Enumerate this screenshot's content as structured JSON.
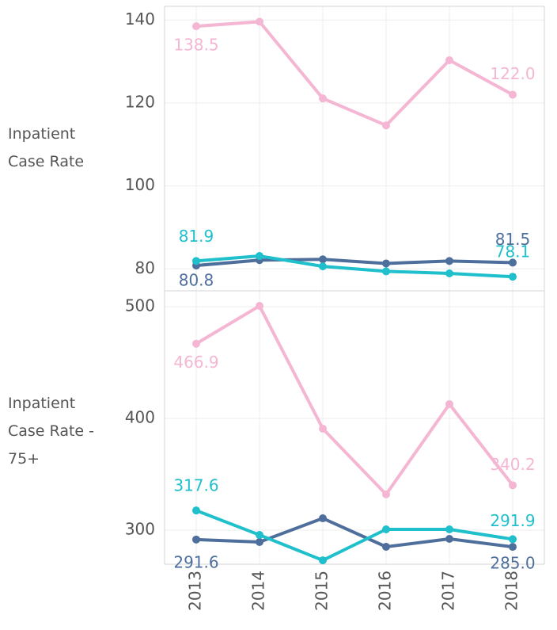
{
  "chart_data": {
    "type": "line",
    "categories": [
      "2013",
      "2014",
      "2015",
      "2016",
      "2017",
      "2018"
    ],
    "grid": true,
    "panels": [
      {
        "ylabel": "Inpatient Case Rate",
        "ylim": [
          74.7,
          143.3
        ],
        "yticks": [
          80,
          100,
          120,
          140
        ],
        "series": [
          {
            "color": "#f4b6d2",
            "values": [
              138.5,
              139.6,
              121.1,
              114.6,
              130.3,
              122.0
            ],
            "value_labels": [
              "138.5",
              null,
              null,
              null,
              null,
              "122.0"
            ]
          },
          {
            "color": "#4e6f9c",
            "values": [
              80.8,
              82.1,
              82.3,
              81.3,
              81.9,
              81.5
            ],
            "value_labels": [
              "80.8",
              null,
              null,
              null,
              null,
              "81.5"
            ]
          },
          {
            "color": "#1fbfcc",
            "values": [
              81.9,
              83.1,
              80.6,
              79.4,
              78.9,
              78.1
            ],
            "value_labels": [
              "81.9",
              null,
              null,
              null,
              null,
              "78.1"
            ]
          }
        ]
      },
      {
        "ylabel": "Inpatient Case Rate - 75+",
        "ylim": [
          269.5,
          514.2
        ],
        "yticks": [
          300,
          400,
          500
        ],
        "series": [
          {
            "color": "#f4b6d2",
            "values": [
              466.9,
              500.7,
              390.8,
              332.0,
              412.8,
              340.2
            ],
            "value_labels": [
              "466.9",
              null,
              null,
              null,
              null,
              "340.2"
            ]
          },
          {
            "color": "#4e6f9c",
            "values": [
              291.6,
              289.4,
              310.6,
              285.1,
              292.2,
              285.0
            ],
            "value_labels": [
              "291.6",
              null,
              null,
              null,
              null,
              "285.0"
            ]
          },
          {
            "color": "#1fbfcc",
            "values": [
              317.6,
              295.7,
              273.0,
              300.7,
              300.7,
              291.9
            ],
            "value_labels": [
              "317.6",
              null,
              null,
              null,
              null,
              "291.9"
            ]
          }
        ]
      }
    ]
  }
}
